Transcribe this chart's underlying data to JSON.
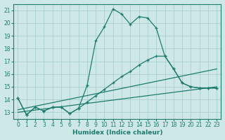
{
  "xlabel": "Humidex (Indice chaleur)",
  "bg_color": "#cde8e6",
  "grid_color": "#aacfcd",
  "line_color": "#1e7b6e",
  "xlim": [
    -0.5,
    23.5
  ],
  "ylim": [
    12.5,
    21.5
  ],
  "xticks": [
    0,
    1,
    2,
    3,
    4,
    5,
    6,
    7,
    8,
    9,
    10,
    11,
    12,
    13,
    14,
    15,
    16,
    17,
    18,
    19,
    20,
    21,
    22,
    23
  ],
  "yticks": [
    13,
    14,
    15,
    16,
    17,
    18,
    19,
    20,
    21
  ],
  "curve1_x": [
    0,
    1,
    2,
    3,
    4,
    5,
    6,
    7,
    8,
    9,
    10,
    11,
    12,
    13,
    14,
    15,
    16,
    17,
    18,
    19,
    20,
    21,
    22,
    23
  ],
  "curve1_y": [
    14.1,
    12.8,
    13.4,
    13.1,
    13.4,
    13.4,
    12.9,
    13.3,
    15.1,
    18.6,
    19.7,
    21.1,
    20.7,
    19.9,
    20.5,
    20.4,
    19.6,
    17.4,
    16.4,
    15.3,
    15.0,
    14.9,
    14.9,
    14.9
  ],
  "curve2_x": [
    0,
    1,
    2,
    3,
    4,
    5,
    6,
    7,
    8,
    9,
    10,
    11,
    12,
    13,
    14,
    15,
    16,
    17,
    18,
    19,
    20,
    21,
    22,
    23
  ],
  "curve2_y": [
    14.1,
    12.8,
    13.4,
    13.1,
    13.4,
    13.4,
    12.9,
    13.3,
    13.8,
    14.3,
    14.8,
    15.3,
    15.8,
    16.2,
    16.7,
    17.1,
    17.4,
    17.4,
    16.4,
    15.3,
    15.0,
    14.9,
    14.9,
    14.9
  ],
  "line3_x": [
    0,
    23
  ],
  "line3_y": [
    13.2,
    16.4
  ],
  "line4_x": [
    0,
    23
  ],
  "line4_y": [
    13.0,
    15.0
  ]
}
